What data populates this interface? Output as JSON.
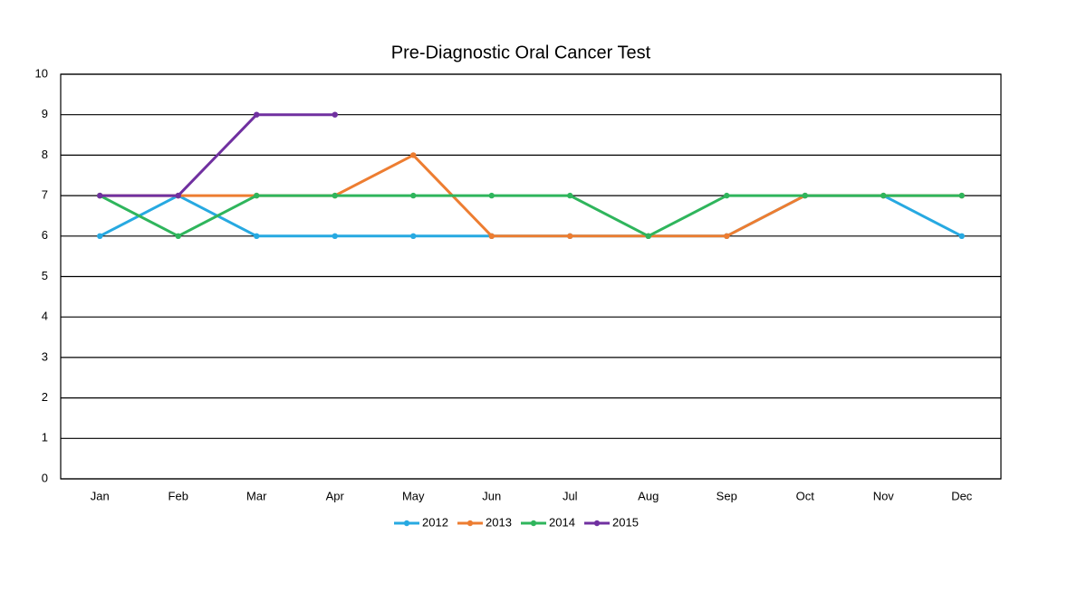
{
  "chart_data": {
    "type": "line",
    "title": "Pre-Diagnostic Oral Cancer Test",
    "categories": [
      "Jan",
      "Feb",
      "Mar",
      "Apr",
      "May",
      "Jun",
      "Jul",
      "Aug",
      "Sep",
      "Oct",
      "Nov",
      "Dec"
    ],
    "series": [
      {
        "name": "2012",
        "color": "#27a9e1",
        "values": [
          6,
          7,
          6,
          6,
          6,
          6,
          6,
          6,
          6,
          7,
          7,
          6
        ]
      },
      {
        "name": "2013",
        "color": "#ed7d31",
        "values": [
          7,
          7,
          7,
          7,
          8,
          6,
          6,
          6,
          6,
          7,
          7,
          7
        ]
      },
      {
        "name": "2014",
        "color": "#2fb55c",
        "values": [
          7,
          6,
          7,
          7,
          7,
          7,
          7,
          6,
          7,
          7,
          7,
          7
        ]
      },
      {
        "name": "2015",
        "color": "#7030a0",
        "values": [
          7,
          7,
          9,
          9,
          null,
          null,
          null,
          null,
          null,
          null,
          null,
          null
        ]
      }
    ],
    "ylim": [
      0,
      10
    ],
    "yticks": [
      0,
      1,
      2,
      3,
      4,
      5,
      6,
      7,
      8,
      9,
      10
    ],
    "grid": true,
    "legend": "bottom"
  }
}
